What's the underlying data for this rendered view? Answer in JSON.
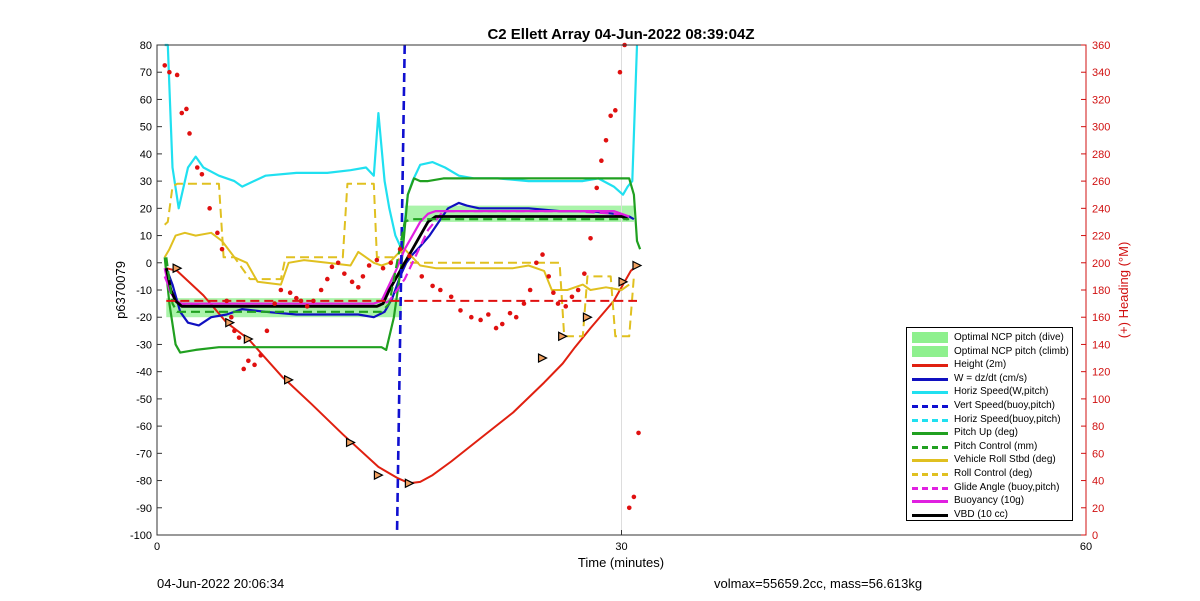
{
  "chart_data": {
    "type": "line",
    "title": "C2 Ellett Array 04-Jun-2022 08:39:04Z",
    "xlabel": "Time (minutes)",
    "ylabel": "p6370079",
    "ylabel_right": "(+) Heading (°M)",
    "xlim": [
      0,
      60
    ],
    "ylim": [
      -100,
      80
    ],
    "ylim_right": [
      0,
      360
    ],
    "xticks": [
      "0",
      "30",
      "60"
    ],
    "yticks": [
      "80",
      "70",
      "60",
      "50",
      "40",
      "30",
      "20",
      "10",
      "0",
      "-10",
      "-20",
      "-30",
      "-40",
      "-50",
      "-60",
      "-70",
      "-80",
      "-90",
      "-100"
    ],
    "yticks_right": [
      "360",
      "340",
      "320",
      "300",
      "280",
      "260",
      "240",
      "220",
      "200",
      "180",
      "160",
      "140",
      "120",
      "100",
      "80",
      "60",
      "40",
      "20",
      "0"
    ],
    "grid": "x only at 30",
    "legend_position": "bottom-right",
    "colors": {
      "ncp": "#8ef08e",
      "height": "#e02010",
      "w": "#1010c0",
      "horiz": "#20e0f0",
      "vert": "#1010d0",
      "pitch": "#20a020",
      "roll": "#e0c020",
      "glide": "#e020e0",
      "vbd": "#000000",
      "heading": "#e01010",
      "right_axis": "#d01010"
    },
    "legend": [
      {
        "label": "Optimal NCP pitch (dive)",
        "style": "patch",
        "color": "#8ef08e"
      },
      {
        "label": "Optimal NCP pitch (climb)",
        "style": "patch",
        "color": "#8ef08e"
      },
      {
        "label": "Height (2m)",
        "style": "solid",
        "color": "#e02010"
      },
      {
        "label": "W = dz/dt (cm/s)",
        "style": "solid",
        "color": "#1010c0"
      },
      {
        "label": "Horiz Speed(W,pitch)",
        "style": "solid",
        "color": "#20e0f0"
      },
      {
        "label": "Vert Speed(buoy,pitch)",
        "style": "dashed",
        "color": "#1010d0"
      },
      {
        "label": "Horiz Speed(buoy,pitch)",
        "style": "dashed",
        "color": "#20e0f0"
      },
      {
        "label": "Pitch Up (deg)",
        "style": "solid",
        "color": "#20a020"
      },
      {
        "label": "Pitch Control (mm)",
        "style": "dashed",
        "color": "#20a020"
      },
      {
        "label": "Vehicle Roll Stbd (deg)",
        "style": "solid",
        "color": "#e0c020"
      },
      {
        "label": "Roll Control (deg)",
        "style": "dashed",
        "color": "#e0c020"
      },
      {
        "label": "Glide Angle (buoy,pitch)",
        "style": "dashed",
        "color": "#e020e0"
      },
      {
        "label": "Buoyancy (10g)",
        "style": "solid",
        "color": "#e020e0"
      },
      {
        "label": "VBD (10 cc)",
        "style": "solid",
        "color": "#000000"
      }
    ],
    "ncp_bands": [
      {
        "name": "Optimal NCP pitch (dive)",
        "x": [
          0.6,
          15.8
        ],
        "y": [
          -20,
          -13
        ]
      },
      {
        "name": "Optimal NCP pitch (climb)",
        "x": [
          16.0,
          30.8
        ],
        "y": [
          15,
          21
        ]
      }
    ],
    "series": [
      {
        "name": "Height (2m)",
        "key": "height",
        "style": "solid",
        "x": [
          0.6,
          1.3,
          3.0,
          4.5,
          5.9,
          7.0,
          8.1,
          8.5,
          10.0,
          12.0,
          14.3,
          15.5,
          16.3,
          17.0,
          17.8,
          19.0,
          21.0,
          23.0,
          25.0,
          26.2,
          27.0,
          28.0,
          29.5,
          30.1,
          30.6,
          31.0
        ],
        "y": [
          -2,
          -3,
          -12,
          -22,
          -28,
          -35,
          -42,
          -44,
          -52,
          -63,
          -75,
          -79,
          -81,
          -80.5,
          -78,
          -73,
          -64,
          -55,
          -44,
          -37,
          -31,
          -24,
          -14,
          -8,
          -3,
          -1
        ]
      },
      {
        "name": "W = dz/dt (cm/s)",
        "key": "w",
        "style": "solid",
        "x": [
          0.6,
          1.0,
          1.5,
          2.0,
          2.7,
          3.5,
          4.5,
          5.5,
          7.0,
          9.0,
          11.0,
          13.0,
          14.0,
          14.7,
          15.2,
          15.7,
          16.1,
          16.5,
          17.0,
          17.6,
          18.2,
          18.8,
          19.5,
          20.0,
          20.8,
          22.0,
          24.0,
          26.0,
          28.0,
          29.5,
          30.1,
          30.5,
          30.8
        ],
        "y": [
          -2,
          -8,
          -18,
          -22,
          -23,
          -20,
          -19,
          -17,
          -18,
          -19,
          -19,
          -19,
          -20,
          -18,
          -13,
          -5,
          0,
          3,
          6,
          10,
          15,
          20,
          22,
          21,
          20,
          20,
          20,
          19,
          19,
          18,
          17,
          17,
          16
        ]
      },
      {
        "name": "Horiz Speed(W,pitch)",
        "key": "horiz",
        "style": "solid",
        "x": [
          0.5,
          0.7,
          1.0,
          1.4,
          2.0,
          2.5,
          3.0,
          4.0,
          5.0,
          5.5,
          7.0,
          9.0,
          11.0,
          12.5,
          13.5,
          14.0,
          14.3,
          14.7,
          15.0,
          15.4,
          15.8,
          16.2,
          16.5,
          17.0,
          17.8,
          18.6,
          19.5,
          20.5,
          22.0,
          24.0,
          26.0,
          27.5,
          28.5,
          29.5,
          30.1,
          30.4,
          30.7,
          31.0
        ],
        "y": [
          80,
          80,
          35,
          20,
          35,
          39,
          35,
          32,
          30,
          28,
          32,
          33,
          33,
          34,
          35,
          32,
          55,
          30,
          20,
          10,
          5,
          25,
          30,
          36,
          37,
          35,
          32,
          31,
          31,
          30,
          30,
          30,
          31,
          28,
          25,
          28,
          30,
          80
        ]
      },
      {
        "name": "Pitch Up (deg)",
        "key": "pitch",
        "style": "solid",
        "x": [
          0.5,
          0.8,
          1.2,
          1.5,
          2.5,
          4.0,
          6.0,
          9.0,
          12.0,
          14.5,
          14.8,
          15.3,
          15.8,
          16.2,
          16.6,
          17.0,
          17.5,
          18.5,
          21.0,
          24.0,
          27.0,
          29.5,
          30.5,
          30.8,
          31.0,
          31.2
        ],
        "y": [
          2,
          -15,
          -30,
          -33,
          -32,
          -31,
          -31,
          -31,
          -31,
          -31,
          -32,
          -20,
          0,
          25,
          31,
          30,
          30,
          31,
          31,
          31,
          31,
          31,
          31,
          25,
          8,
          5
        ]
      },
      {
        "name": "Vehicle Roll Stbd (deg)",
        "key": "roll",
        "style": "solid",
        "x": [
          0.5,
          0.8,
          1.2,
          1.8,
          2.5,
          3.5,
          4.2,
          5.0,
          5.8,
          6.5,
          8.0,
          8.5,
          9.5,
          11.0,
          12.5,
          13.0,
          14.0,
          14.5,
          15.0,
          15.5,
          16.0,
          16.5,
          17.0,
          18.0,
          19.0,
          21.0,
          23.0,
          24.0,
          25.0,
          25.5,
          26.5,
          27.5,
          28.0,
          29.0,
          30.0,
          30.5
        ],
        "y": [
          2,
          5,
          10,
          11,
          10,
          11,
          8,
          2,
          0,
          -7,
          -8,
          0,
          1,
          0,
          -1,
          4,
          0,
          -1,
          0,
          3,
          5,
          2,
          -1,
          -2,
          -2,
          -2,
          -2,
          -1,
          -3,
          -10,
          -10,
          -8,
          -10,
          -9,
          -10,
          -8
        ]
      },
      {
        "name": "Roll Control (deg)",
        "key": "roll_ctl",
        "style": "dashed",
        "x": [
          0.5,
          0.7,
          1.0,
          1.3,
          4.0,
          4.3,
          5.0,
          6.0,
          8.0,
          8.3,
          12.0,
          12.3,
          14.0,
          14.2,
          15.5,
          15.8,
          17.0,
          24.0,
          24.3,
          26.0,
          26.3,
          27.5,
          27.8,
          29.3,
          29.6,
          30.5,
          30.8
        ],
        "y": [
          14,
          15,
          28,
          29,
          29,
          2,
          2,
          -6,
          -6,
          2,
          2,
          29,
          29,
          2,
          2,
          0,
          0,
          0,
          0,
          0,
          -27,
          -27,
          -5,
          -5,
          -27,
          -27,
          -5
        ]
      },
      {
        "name": "Glide Angle (buoy,pitch)",
        "key": "glide_dash",
        "style": "dashed",
        "x": [
          0.5,
          1.0,
          1.5,
          3.0,
          6.0,
          9.0,
          12.0,
          14.3,
          15.0,
          16.0,
          17.5,
          18.5,
          21.0,
          24.0,
          27.0,
          29.5,
          30.5
        ],
        "y": [
          -5,
          -12,
          -15,
          -16,
          -16,
          -16,
          -16,
          -16,
          -14,
          -6,
          12,
          19,
          19,
          19,
          19,
          18,
          17
        ]
      },
      {
        "name": "Buoyancy (10g)",
        "key": "buoy",
        "style": "solid",
        "x": [
          0.5,
          0.8,
          1.2,
          1.6,
          2.5,
          4.5,
          7.0,
          10.0,
          12.5,
          14.0,
          14.5,
          15.0,
          15.5,
          16.0,
          16.5,
          17.0,
          17.5,
          18.0,
          19.0,
          21.0,
          24.0,
          27.0,
          29.5,
          30.0,
          30.5
        ],
        "y": [
          -2,
          -10,
          -14,
          -15,
          -15,
          -15,
          -15,
          -15,
          -15,
          -15,
          -14,
          -8,
          -2,
          5,
          10,
          15,
          18,
          19,
          19,
          19,
          19,
          19,
          19,
          18,
          17
        ]
      },
      {
        "name": "VBD (10 cc)",
        "key": "vbd",
        "style": "solid",
        "x": [
          0.6,
          0.9,
          1.2,
          1.6,
          2.5,
          4.5,
          7.0,
          10.0,
          13.0,
          14.2,
          14.6,
          15.0,
          15.5,
          16.0,
          16.5,
          17.0,
          17.5,
          18.0,
          19.0,
          20.5,
          23.0,
          26.0,
          29.0,
          30.0,
          30.4
        ],
        "y": [
          -2,
          -10,
          -14,
          -16,
          -16,
          -16,
          -16,
          -16,
          -16,
          -16,
          -15,
          -10,
          -5,
          0,
          5,
          10,
          15,
          17,
          17,
          17,
          17,
          17,
          17,
          17,
          16
        ]
      },
      {
        "name": "Vert Speed(buoy,pitch)",
        "key": "vert",
        "style": "dashed",
        "x": [
          16.0,
          15.5
        ],
        "y": [
          80,
          -100
        ]
      },
      {
        "name": "Pitch Control (mm)",
        "key": "pitch_ctl",
        "style": "dashed",
        "x": [
          0.6,
          1.0,
          1.3,
          14.5,
          15.0,
          16.0,
          16.4,
          30.5
        ],
        "y": [
          2,
          -15,
          -18,
          -18,
          -15,
          15,
          16,
          16
        ]
      },
      {
        "name": "Heading reference",
        "key": "heading_ref",
        "style": "dashed",
        "x": [
          0.6,
          31.0
        ],
        "y": [
          -14,
          -14
        ]
      }
    ],
    "markers": {
      "triangle_x": [
        1.3,
        4.7,
        5.9,
        8.5,
        12.5,
        14.3,
        16.3,
        24.9,
        26.2,
        27.8,
        30.1,
        31.0
      ],
      "triangle_y": [
        -2,
        -22,
        -28,
        -43,
        -66,
        -78,
        -81,
        -35,
        -27,
        -20,
        -7,
        -1
      ],
      "heading_scatter_x": [
        0.5,
        0.8,
        1.3,
        1.6,
        1.9,
        2.1,
        2.6,
        2.9,
        3.4,
        3.9,
        4.2,
        4.5,
        4.8,
        5.0,
        5.3,
        5.6,
        5.9,
        6.3,
        6.7,
        7.1,
        7.6,
        8.0,
        8.6,
        9.0,
        9.3,
        9.7,
        10.1,
        10.6,
        11.0,
        11.3,
        11.7,
        12.1,
        12.6,
        13.0,
        13.3,
        13.7,
        14.2,
        14.6,
        15.1,
        15.7,
        16.3,
        17.1,
        17.8,
        18.3,
        19.0,
        19.6,
        20.3,
        20.9,
        21.4,
        21.9,
        22.3,
        22.8,
        23.2,
        23.7,
        24.1,
        24.5,
        24.9,
        25.3,
        25.6,
        25.9,
        26.4,
        26.8,
        27.2,
        27.6,
        28.0,
        28.4,
        28.7,
        29.0,
        29.3,
        29.6,
        29.9,
        30.2,
        30.5,
        30.8,
        31.1
      ],
      "heading_scatter_y": [
        345,
        340,
        338,
        310,
        313,
        295,
        270,
        265,
        240,
        222,
        210,
        172,
        160,
        150,
        145,
        122,
        128,
        125,
        132,
        150,
        170,
        180,
        178,
        174,
        172,
        168,
        172,
        180,
        188,
        197,
        200,
        192,
        186,
        182,
        190,
        198,
        202,
        196,
        200,
        210,
        205,
        190,
        183,
        180,
        175,
        165,
        160,
        158,
        162,
        152,
        155,
        163,
        160,
        170,
        180,
        200,
        206,
        190,
        178,
        170,
        168,
        175,
        180,
        192,
        218,
        255,
        275,
        290,
        308,
        312,
        340,
        360,
        20,
        28,
        75
      ]
    }
  }
}
